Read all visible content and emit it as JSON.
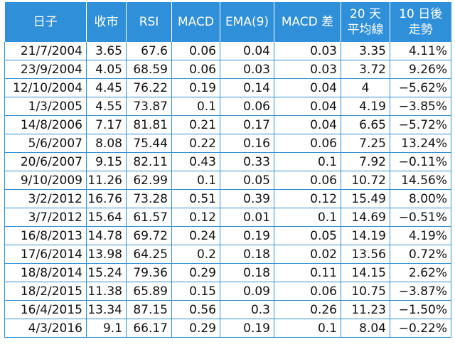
{
  "table": {
    "headers": [
      [
        "日子"
      ],
      [
        "收市"
      ],
      [
        "RSI"
      ],
      [
        "MACD"
      ],
      [
        "EMA(9)"
      ],
      [
        "MACD 差"
      ],
      [
        "20 天",
        "平均線"
      ],
      [
        "10 日後",
        "走勢"
      ]
    ],
    "rows": [
      [
        "21/7/2004",
        "3.65",
        "67.6",
        "0.06",
        "0.04",
        "0.03",
        "3.35",
        "4.11%"
      ],
      [
        "23/9/2004",
        "4.05",
        "68.59",
        "0.06",
        "0.03",
        "0.03",
        "3.72",
        "9.26%"
      ],
      [
        "12/10/2004",
        "4.45",
        "76.22",
        "0.19",
        "0.14",
        "0.04",
        "4",
        "−5.62%"
      ],
      [
        "1/3/2005",
        "4.55",
        "73.87",
        "0.1",
        "0.06",
        "0.04",
        "4.19",
        "−3.85%"
      ],
      [
        "14/8/2006",
        "7.17",
        "81.81",
        "0.21",
        "0.17",
        "0.04",
        "6.65",
        "−5.72%"
      ],
      [
        "5/6/2007",
        "8.08",
        "75.44",
        "0.22",
        "0.16",
        "0.06",
        "7.25",
        "13.24%"
      ],
      [
        "20/6/2007",
        "9.15",
        "82.11",
        "0.43",
        "0.33",
        "0.1",
        "7.92",
        "−0.11%"
      ],
      [
        "9/10/2009",
        "11.26",
        "62.99",
        "0.1",
        "0.05",
        "0.06",
        "10.72",
        "14.56%"
      ],
      [
        "3/2/2012",
        "16.76",
        "73.28",
        "0.51",
        "0.39",
        "0.12",
        "15.49",
        "8.00%"
      ],
      [
        "3/7/2012",
        "15.64",
        "61.57",
        "0.12",
        "0.01",
        "0.1",
        "14.69",
        "−0.51%"
      ],
      [
        "16/8/2013",
        "14.78",
        "69.72",
        "0.24",
        "0.19",
        "0.05",
        "14.19",
        "4.19%"
      ],
      [
        "17/6/2014",
        "13.98",
        "64.25",
        "0.2",
        "0.18",
        "0.02",
        "13.56",
        "0.72%"
      ],
      [
        "18/8/2014",
        "15.24",
        "79.36",
        "0.29",
        "0.18",
        "0.11",
        "14.15",
        "2.62%"
      ],
      [
        "18/2/2015",
        "11.38",
        "65.89",
        "0.15",
        "0.09",
        "0.06",
        "10.75",
        "−3.87%"
      ],
      [
        "16/4/2015",
        "13.34",
        "87.15",
        "0.56",
        "0.3",
        "0.26",
        "11.23",
        "−1.50%"
      ],
      [
        "4/3/2016",
        "9.1",
        "66.17",
        "0.29",
        "0.19",
        "0.1",
        "8.04",
        "−0.22%"
      ]
    ]
  },
  "colors": {
    "header_bg": "#2f8fd8",
    "header_text": "#ffffff",
    "grid": "#2f8fd8",
    "cell_text": "#111111"
  }
}
